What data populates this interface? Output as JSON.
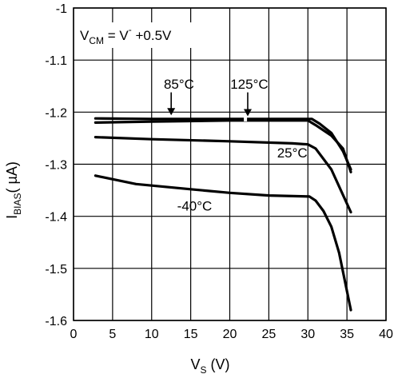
{
  "chart_data": {
    "type": "line",
    "title": "",
    "xlabel": {
      "main": "V",
      "sub": "S",
      "unit": " (V)"
    },
    "ylabel": {
      "main": "I",
      "sub": "BIAS",
      "unit": "( µA)"
    },
    "xlim": [
      0,
      40
    ],
    "ylim": [
      -1.6,
      -1.0
    ],
    "x_ticks": [
      0,
      5,
      10,
      15,
      20,
      25,
      30,
      35,
      40
    ],
    "y_ticks": [
      -1.0,
      -1.1,
      -1.2,
      -1.3,
      -1.4,
      -1.5,
      -1.6
    ],
    "x_tick_labels": [
      "0",
      "5",
      "10",
      "15",
      "20",
      "25",
      "30",
      "35",
      "40"
    ],
    "y_tick_labels": [
      "-1",
      "-1.1",
      "-1.2",
      "-1.3",
      "-1.4",
      "-1.5",
      "-1.6"
    ],
    "grid": true,
    "condition": {
      "main": "V",
      "sub": "CM",
      "mid": " = V",
      "sup": "-",
      "tail": " +0.5V"
    },
    "series": [
      {
        "name": "85°C",
        "x": [
          2.8,
          10,
          20,
          30.5,
          31.5,
          33,
          34.5,
          35.5
        ],
        "y": [
          -1.212,
          -1.213,
          -1.213,
          -1.213,
          -1.222,
          -1.24,
          -1.275,
          -1.31
        ]
      },
      {
        "name": "125°C",
        "x": [
          2.8,
          10,
          20,
          30,
          31,
          33,
          34.5,
          35.5
        ],
        "y": [
          -1.22,
          -1.218,
          -1.216,
          -1.216,
          -1.225,
          -1.245,
          -1.27,
          -1.315
        ]
      },
      {
        "name": "25°C",
        "x": [
          2.8,
          10,
          20,
          28,
          30,
          31,
          33,
          35.5
        ],
        "y": [
          -1.248,
          -1.252,
          -1.256,
          -1.26,
          -1.262,
          -1.27,
          -1.31,
          -1.392
        ]
      },
      {
        "name": "-40°C",
        "x": [
          2.8,
          8,
          15,
          20,
          25,
          30.2,
          31,
          32,
          33,
          34,
          35.5
        ],
        "y": [
          -1.322,
          -1.338,
          -1.348,
          -1.355,
          -1.36,
          -1.362,
          -1.37,
          -1.39,
          -1.42,
          -1.47,
          -1.58
        ]
      }
    ],
    "annotations": [
      {
        "text": "85°C",
        "x": 13.5,
        "y": -1.155
      },
      {
        "text": "125°C",
        "x": 22.5,
        "y": -1.155
      },
      {
        "text": "25°C",
        "x": 28,
        "y": -1.287
      },
      {
        "text": "-40°C",
        "x": 15.5,
        "y": -1.389
      }
    ]
  }
}
